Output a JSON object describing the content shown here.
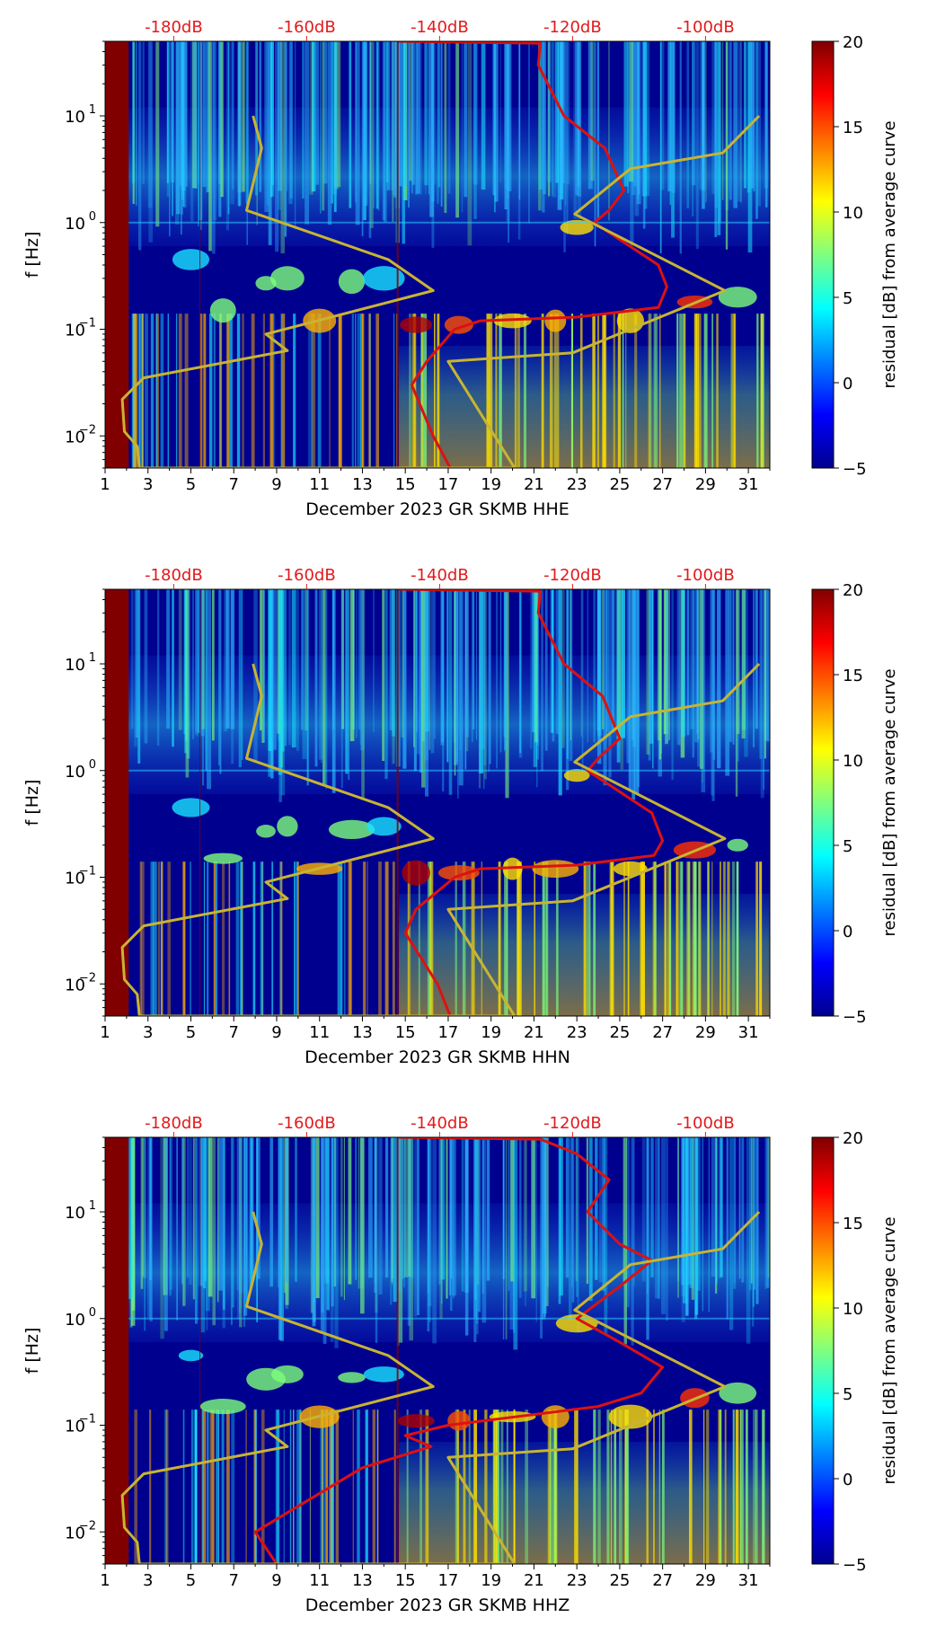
{
  "chart_data": [
    {
      "type": "heatmap",
      "title": "",
      "xlabel": "December 2023 GR SKMB  HHE",
      "ylabel": "f [Hz]",
      "x_ticks": [
        "1",
        "3",
        "5",
        "7",
        "9",
        "11",
        "13",
        "15",
        "17",
        "19",
        "21",
        "23",
        "25",
        "27",
        "29",
        "31"
      ],
      "xlim": [
        1,
        32
      ],
      "y_ticks": [
        {
          "value": 0.01,
          "base": "10",
          "exp": "−2"
        },
        {
          "value": 0.1,
          "base": "10",
          "exp": "−1"
        },
        {
          "value": 1,
          "base": "10",
          "exp": "0"
        },
        {
          "value": 10,
          "base": "10",
          "exp": "1"
        }
      ],
      "ylim": [
        0.005,
        50
      ],
      "yscale": "log",
      "db_ticks": [
        {
          "label": "-180dB",
          "day": 4.2
        },
        {
          "label": "-160dB",
          "day": 10.4
        },
        {
          "label": "-140dB",
          "day": 16.6
        },
        {
          "label": "-120dB",
          "day": 22.8
        },
        {
          "label": "-100dB",
          "day": 29.0
        }
      ],
      "colorbar": {
        "label": "residual [dB] from average curve",
        "ticks": [
          "20",
          "15",
          "10",
          "5",
          "0",
          "−5"
        ],
        "range": [
          -5,
          20
        ]
      },
      "series": [
        {
          "name": "average PSD curve (red)",
          "color": "#dd1111",
          "points": [
            [
              14.7,
              50
            ],
            [
              21.3,
              48
            ],
            [
              21.2,
              30
            ],
            [
              22.4,
              10
            ],
            [
              24.3,
              5
            ],
            [
              25.2,
              2
            ],
            [
              24.5,
              1.3
            ],
            [
              23.8,
              1
            ],
            [
              26.8,
              0.4
            ],
            [
              27.2,
              0.25
            ],
            [
              26.8,
              0.16
            ],
            [
              23.0,
              0.13
            ],
            [
              18.5,
              0.12
            ],
            [
              17.3,
              0.1
            ],
            [
              16.0,
              0.05
            ],
            [
              15.3,
              0.03
            ],
            [
              16.3,
              0.01
            ],
            [
              17.1,
              0.005
            ]
          ]
        },
        {
          "name": "noise model curve (yellow)",
          "color": "#c8b432",
          "points": [
            [
              7.9,
              10
            ],
            [
              8.3,
              5
            ],
            [
              7.6,
              1.3
            ],
            [
              14.2,
              0.45
            ],
            [
              16.3,
              0.23
            ],
            [
              8.5,
              0.09
            ],
            [
              9.5,
              0.063
            ],
            [
              2.8,
              0.035
            ],
            [
              1.8,
              0.022
            ],
            [
              1.9,
              0.011
            ],
            [
              2.5,
              0.008
            ],
            [
              2.6,
              0.005
            ],
            [
              20.1,
              0.005
            ],
            [
              17.0,
              0.05
            ],
            [
              22.8,
              0.06
            ],
            [
              29.9,
              0.23
            ],
            [
              22.9,
              1.2
            ],
            [
              25.5,
              3.2
            ],
            [
              29.8,
              4.5
            ],
            [
              31.5,
              10
            ]
          ]
        }
      ]
    },
    {
      "type": "heatmap",
      "title": "",
      "xlabel": "December 2023 GR SKMB  HHN",
      "ylabel": "f [Hz]",
      "x_ticks": [
        "1",
        "3",
        "5",
        "7",
        "9",
        "11",
        "13",
        "15",
        "17",
        "19",
        "21",
        "23",
        "25",
        "27",
        "29",
        "31"
      ],
      "xlim": [
        1,
        32
      ],
      "y_ticks": [
        {
          "value": 0.01,
          "base": "10",
          "exp": "−2"
        },
        {
          "value": 0.1,
          "base": "10",
          "exp": "−1"
        },
        {
          "value": 1,
          "base": "10",
          "exp": "0"
        },
        {
          "value": 10,
          "base": "10",
          "exp": "1"
        }
      ],
      "ylim": [
        0.005,
        50
      ],
      "yscale": "log",
      "db_ticks": [
        {
          "label": "-180dB",
          "day": 4.2
        },
        {
          "label": "-160dB",
          "day": 10.4
        },
        {
          "label": "-140dB",
          "day": 16.6
        },
        {
          "label": "-120dB",
          "day": 22.8
        },
        {
          "label": "-100dB",
          "day": 29.0
        }
      ],
      "colorbar": {
        "label": "residual [dB] from average curve",
        "ticks": [
          "20",
          "15",
          "10",
          "5",
          "0",
          "−5"
        ],
        "range": [
          -5,
          20
        ]
      },
      "series": [
        {
          "name": "average PSD curve (red)",
          "color": "#dd1111",
          "points": [
            [
              14.7,
              50
            ],
            [
              21.3,
              48
            ],
            [
              21.2,
              30
            ],
            [
              22.4,
              10
            ],
            [
              24.2,
              5
            ],
            [
              25.0,
              2
            ],
            [
              24.0,
              1.3
            ],
            [
              23.5,
              1
            ],
            [
              26.5,
              0.4
            ],
            [
              27.0,
              0.22
            ],
            [
              26.6,
              0.16
            ],
            [
              23.0,
              0.13
            ],
            [
              18.5,
              0.12
            ],
            [
              17.3,
              0.1
            ],
            [
              15.5,
              0.05
            ],
            [
              15.0,
              0.03
            ],
            [
              16.5,
              0.01
            ],
            [
              17.1,
              0.005
            ]
          ]
        },
        {
          "name": "noise model curve (yellow)",
          "color": "#c8b432",
          "points": [
            [
              7.9,
              10
            ],
            [
              8.3,
              5
            ],
            [
              7.6,
              1.3
            ],
            [
              14.2,
              0.45
            ],
            [
              16.3,
              0.23
            ],
            [
              8.5,
              0.09
            ],
            [
              9.5,
              0.063
            ],
            [
              2.8,
              0.035
            ],
            [
              1.8,
              0.022
            ],
            [
              1.9,
              0.011
            ],
            [
              2.5,
              0.008
            ],
            [
              2.6,
              0.005
            ],
            [
              20.1,
              0.005
            ],
            [
              17.0,
              0.05
            ],
            [
              22.8,
              0.06
            ],
            [
              29.9,
              0.23
            ],
            [
              22.9,
              1.2
            ],
            [
              25.5,
              3.2
            ],
            [
              29.8,
              4.5
            ],
            [
              31.5,
              10
            ]
          ]
        }
      ]
    },
    {
      "type": "heatmap",
      "title": "",
      "xlabel": "December 2023 GR SKMB  HHZ",
      "ylabel": "f [Hz]",
      "x_ticks": [
        "1",
        "3",
        "5",
        "7",
        "9",
        "11",
        "13",
        "15",
        "17",
        "19",
        "21",
        "23",
        "25",
        "27",
        "29",
        "31"
      ],
      "xlim": [
        1,
        32
      ],
      "y_ticks": [
        {
          "value": 0.01,
          "base": "10",
          "exp": "−2"
        },
        {
          "value": 0.1,
          "base": "10",
          "exp": "−1"
        },
        {
          "value": 1,
          "base": "10",
          "exp": "0"
        },
        {
          "value": 10,
          "base": "10",
          "exp": "1"
        }
      ],
      "ylim": [
        0.005,
        50
      ],
      "yscale": "log",
      "db_ticks": [
        {
          "label": "-180dB",
          "day": 4.2
        },
        {
          "label": "-160dB",
          "day": 10.4
        },
        {
          "label": "-140dB",
          "day": 16.6
        },
        {
          "label": "-120dB",
          "day": 22.8
        },
        {
          "label": "-100dB",
          "day": 29.0
        }
      ],
      "colorbar": {
        "label": "residual [dB] from average curve",
        "ticks": [
          "20",
          "15",
          "10",
          "5",
          "0",
          "−5"
        ],
        "range": [
          -5,
          20
        ]
      },
      "series": [
        {
          "name": "average PSD curve (red)",
          "color": "#dd1111",
          "points": [
            [
              14.7,
              50
            ],
            [
              21.3,
              48
            ],
            [
              23.0,
              35
            ],
            [
              24.5,
              20
            ],
            [
              23.5,
              10
            ],
            [
              25.0,
              5
            ],
            [
              26.5,
              3.5
            ],
            [
              25.0,
              2
            ],
            [
              23.0,
              1
            ],
            [
              25.0,
              0.6
            ],
            [
              27.0,
              0.35
            ],
            [
              26.0,
              0.2
            ],
            [
              24.0,
              0.15
            ],
            [
              17.0,
              0.1
            ],
            [
              15.0,
              0.08
            ],
            [
              16.2,
              0.063
            ],
            [
              13.0,
              0.04
            ],
            [
              8.0,
              0.01
            ],
            [
              9.0,
              0.005
            ]
          ]
        },
        {
          "name": "noise model curve (yellow)",
          "color": "#c8b432",
          "points": [
            [
              7.9,
              10
            ],
            [
              8.3,
              5
            ],
            [
              7.6,
              1.3
            ],
            [
              14.2,
              0.45
            ],
            [
              16.3,
              0.23
            ],
            [
              8.5,
              0.09
            ],
            [
              9.5,
              0.063
            ],
            [
              2.8,
              0.035
            ],
            [
              1.8,
              0.022
            ],
            [
              1.9,
              0.011
            ],
            [
              2.5,
              0.008
            ],
            [
              2.6,
              0.005
            ],
            [
              20.1,
              0.005
            ],
            [
              17.0,
              0.05
            ],
            [
              22.8,
              0.06
            ],
            [
              29.9,
              0.23
            ],
            [
              22.9,
              1.2
            ],
            [
              25.5,
              3.2
            ],
            [
              29.8,
              4.5
            ],
            [
              31.5,
              10
            ]
          ]
        }
      ]
    }
  ],
  "colors": {
    "heatmap_low": "#00008f",
    "heatmap_high": "#800000",
    "db_label": "#e31a1c"
  }
}
